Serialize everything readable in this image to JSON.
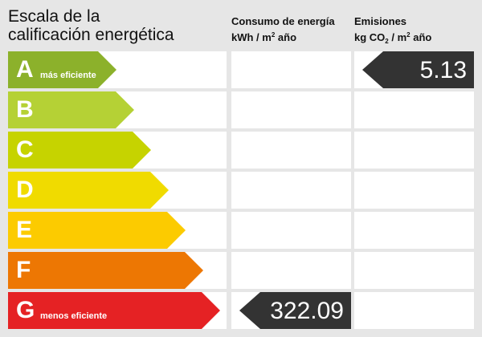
{
  "title": {
    "line1": "Escala de la",
    "line2": "calificación energética"
  },
  "columns": {
    "consumo": {
      "line1": "Consumo de energía",
      "unit_pre": "kWh / m",
      "unit_sup": "2",
      "unit_post": " año"
    },
    "emisiones": {
      "line1": "Emisiones",
      "unit_pre": "kg CO",
      "unit_sub": "2",
      "unit_mid": " / m",
      "unit_sup": "2",
      "unit_post": " año"
    }
  },
  "ratings": [
    {
      "letter": "A",
      "label": "más eficiente",
      "color": "#8cb12b"
    },
    {
      "letter": "B",
      "label": "",
      "color": "#b5d135"
    },
    {
      "letter": "C",
      "label": "",
      "color": "#c6d300"
    },
    {
      "letter": "D",
      "label": "",
      "color": "#f0db00"
    },
    {
      "letter": "E",
      "label": "",
      "color": "#fccb00"
    },
    {
      "letter": "F",
      "label": "",
      "color": "#ed7703"
    },
    {
      "letter": "G",
      "label": "menos eficiente",
      "color": "#e52224"
    }
  ],
  "results": {
    "consumo": {
      "value": "322.09",
      "rating": "G"
    },
    "emisiones": {
      "value": "5.13",
      "rating": "A"
    }
  },
  "indicator_color": "#333333"
}
